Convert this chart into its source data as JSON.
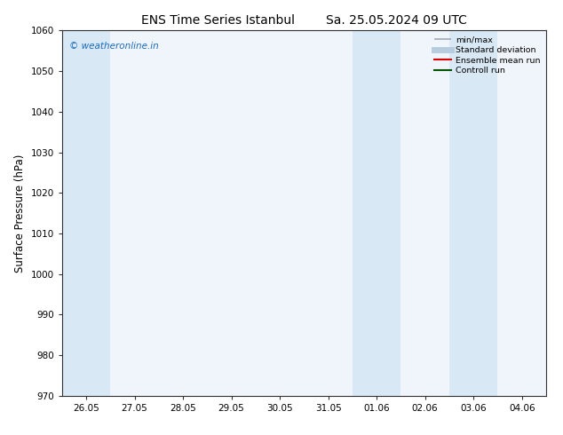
{
  "title": "ENS Time Series Istanbul",
  "title2": "Sa. 25.05.2024 09 UTC",
  "ylabel": "Surface Pressure (hPa)",
  "ylim": [
    970,
    1060
  ],
  "yticks": [
    970,
    980,
    990,
    1000,
    1010,
    1020,
    1030,
    1040,
    1050,
    1060
  ],
  "xtick_labels": [
    "26.05",
    "27.05",
    "28.05",
    "29.05",
    "30.05",
    "31.05",
    "01.06",
    "02.06",
    "03.06",
    "04.06"
  ],
  "xlim_start": 0,
  "xlim_end": 9,
  "shaded_bands": [
    {
      "x_start": 0,
      "x_end": 1
    },
    {
      "x_start": 6,
      "x_end": 7
    },
    {
      "x_start": 8,
      "x_end": 9
    }
  ],
  "shade_color": "#d8e8f5",
  "plot_bg_color": "#f0f5fb",
  "background_color": "#ffffff",
  "watermark_text": "© weatheronline.in",
  "watermark_color": "#1a6bbf",
  "legend_entries": [
    {
      "label": "min/max",
      "color": "#a0aab4",
      "lw": 1.2
    },
    {
      "label": "Standard deviation",
      "color": "#b8cce0",
      "lw": 5
    },
    {
      "label": "Ensemble mean run",
      "color": "#dd0000",
      "lw": 1.5
    },
    {
      "label": "Controll run",
      "color": "#005500",
      "lw": 1.5
    }
  ],
  "tick_fontsize": 7.5,
  "label_fontsize": 8.5,
  "title_fontsize": 10,
  "ylabel_fontsize": 8.5
}
